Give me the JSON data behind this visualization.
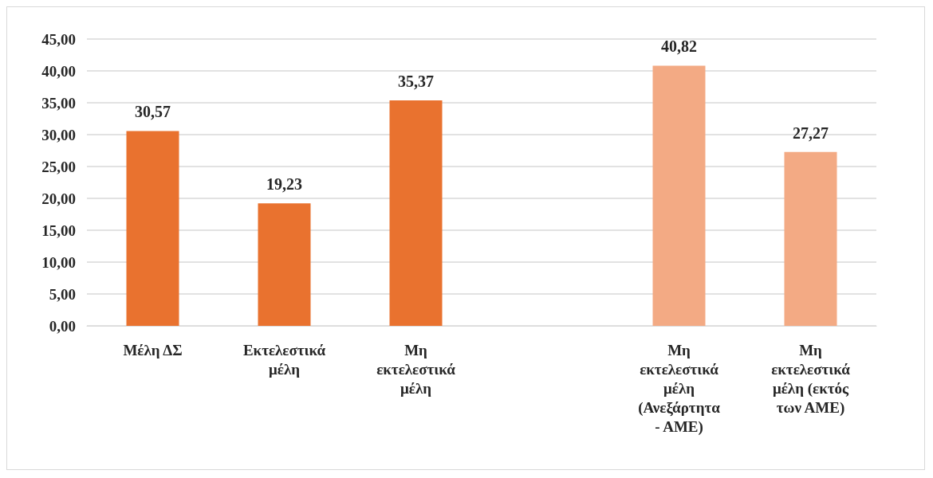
{
  "chart_data": {
    "type": "bar",
    "categories": [
      "Μέλη ΔΣ",
      "Εκτελεστικά μέλη",
      "Μη εκτελεστικά μέλη",
      null,
      "Μη εκτελεστικά μέλη (Ανεξάρτητα - ΑΜΕ)",
      "Μη εκτελεστικά μέλη (εκτός των ΑΜΕ)"
    ],
    "values": [
      30.57,
      19.23,
      35.37,
      null,
      40.82,
      27.27
    ],
    "colors": [
      "#e9722f",
      "#e9722f",
      "#e9722f",
      null,
      "#f3aa84",
      "#f3aa84"
    ],
    "value_labels": [
      "30,57",
      "19,23",
      "35,37",
      null,
      "40,82",
      "27,27"
    ],
    "ylim": [
      0,
      45
    ],
    "yticks": [
      {
        "value": 0,
        "label": "0,00"
      },
      {
        "value": 5,
        "label": "5,00"
      },
      {
        "value": 10,
        "label": "10,00"
      },
      {
        "value": 15,
        "label": "15,00"
      },
      {
        "value": 20,
        "label": "20,00"
      },
      {
        "value": 25,
        "label": "25,00"
      },
      {
        "value": 30,
        "label": "30,00"
      },
      {
        "value": 35,
        "label": "35,00"
      },
      {
        "value": 40,
        "label": "40,00"
      },
      {
        "value": 45,
        "label": "45,00"
      }
    ],
    "grid": "y"
  }
}
